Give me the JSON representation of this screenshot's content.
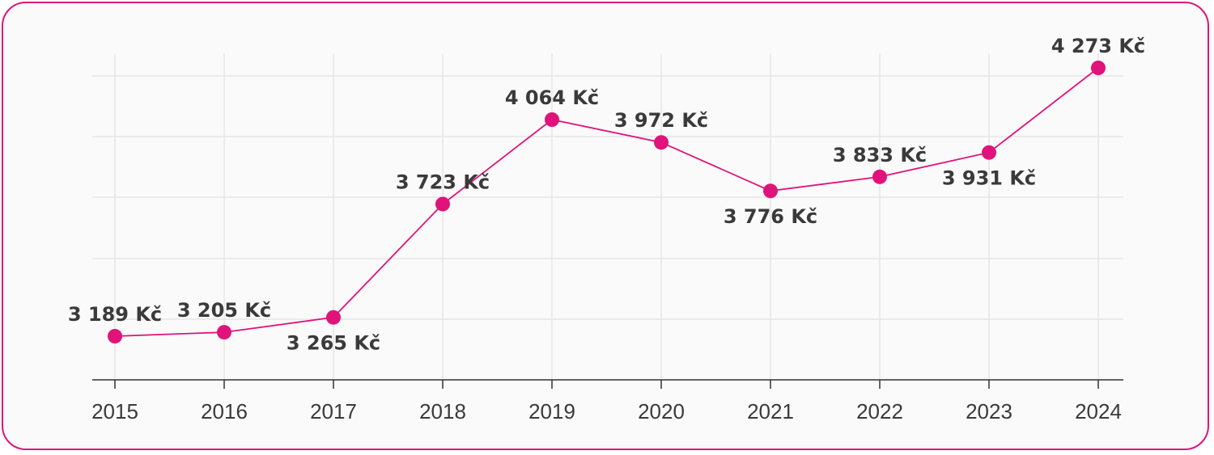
{
  "chart_data": {
    "type": "line",
    "title": "",
    "xlabel": "",
    "ylabel": "",
    "categories": [
      "2015",
      "2016",
      "2017",
      "2018",
      "2019",
      "2020",
      "2021",
      "2022",
      "2023",
      "2024"
    ],
    "series": [
      {
        "values": [
          3189,
          3205,
          3265,
          3723,
          4064,
          3972,
          3776,
          3833,
          3931,
          4273
        ],
        "labels": [
          "3 189 Kč",
          "3 205 Kč",
          "3 265 Kč",
          "3 723 Kč",
          "4 064 Kč",
          "3 972 Kč",
          "3 776 Kč",
          "3 833 Kč",
          "3 931 Kč",
          "4 273 Kč"
        ],
        "label_position": [
          "above",
          "above",
          "below",
          "above",
          "above",
          "above",
          "below",
          "above",
          "below",
          "above"
        ]
      }
    ],
    "ylim": [
      3000,
      4500
    ],
    "grid": true,
    "legend": "none",
    "colors": {
      "series": "#e0137a",
      "card_border": "#e0137a",
      "background": "#f9faf9",
      "grid": "#e6e6e6",
      "text": "#3a3a3a"
    }
  }
}
